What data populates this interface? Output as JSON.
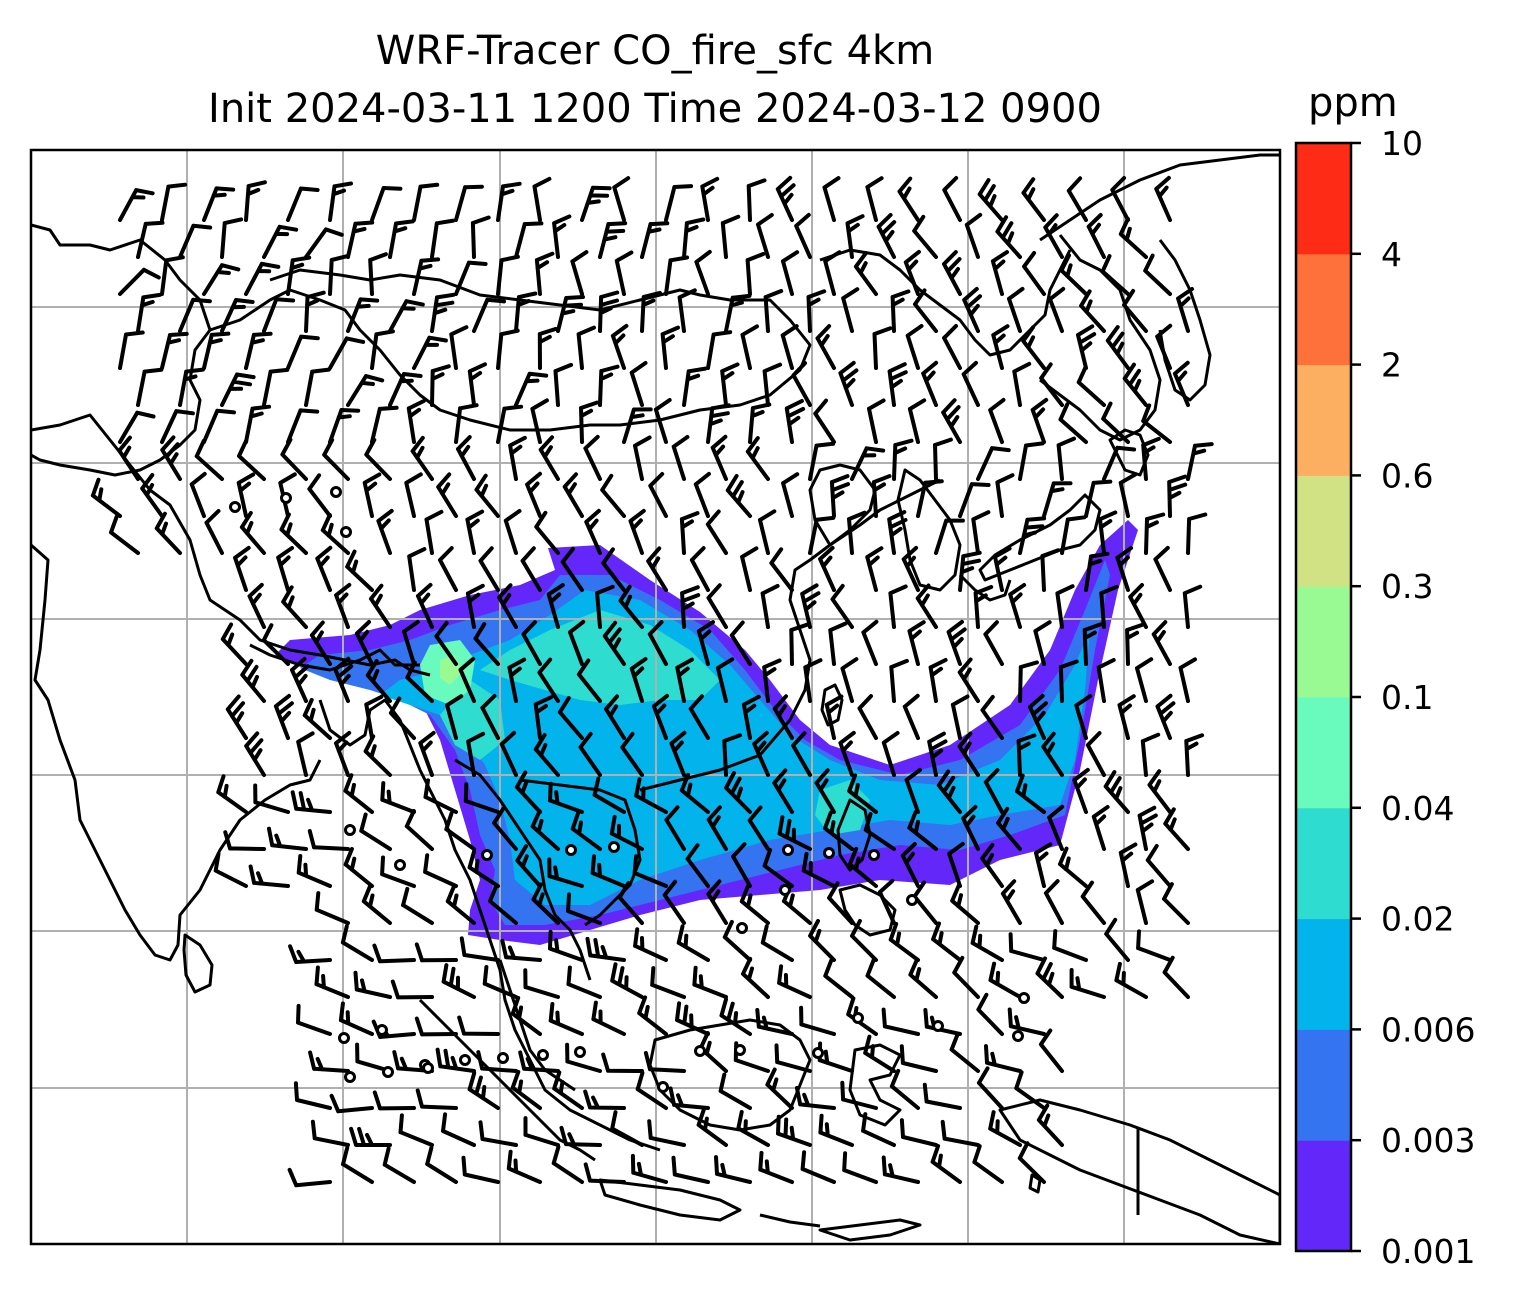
{
  "title_line1": "WRF-Tracer CO_fire_sfc 4km",
  "title_line2": "Init 2024-03-11 1200 Time 2024-03-12 0900",
  "colorbar": {
    "unit_label": "ppm",
    "levels": [
      "0.001",
      "0.003",
      "0.006",
      "0.02",
      "0.04",
      "0.1",
      "0.3",
      "0.6",
      "2",
      "4",
      "10"
    ],
    "colors": [
      "#6427f9",
      "#3574f0",
      "#03b4ec",
      "#2fdcd0",
      "#68fbbd",
      "#99fa94",
      "#d0e283",
      "#fdaf61",
      "#ff713a",
      "#fe2b16"
    ]
  },
  "map": {
    "gridlines": true,
    "coastline_color": "#000000",
    "plume_colors": [
      "#6427f9",
      "#3574f0",
      "#03b4ec",
      "#2fdcd0",
      "#68fbbd",
      "#99fa94"
    ]
  }
}
